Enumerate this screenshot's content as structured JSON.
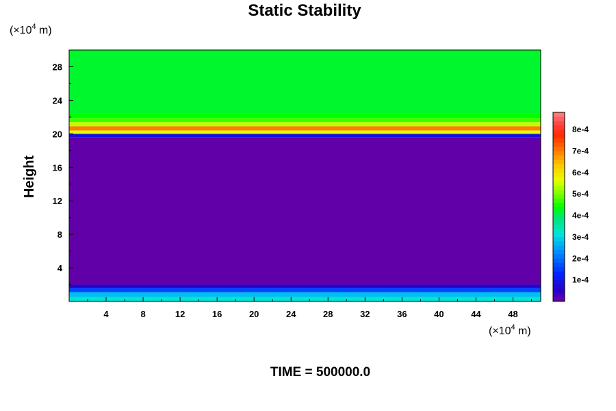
{
  "chart_data": {
    "type": "heatmap",
    "title": "Static Stability",
    "xlabel": "",
    "ylabel": "Height",
    "x_unit": "(×10",
    "x_unit_exp": "4",
    "x_unit_end": " m)",
    "y_unit": "(×10",
    "y_unit_exp": "4",
    "y_unit_end": " m)",
    "xlim": [
      0,
      51
    ],
    "ylim": [
      0,
      30
    ],
    "x_ticks": [
      4,
      8,
      12,
      16,
      20,
      24,
      28,
      32,
      36,
      40,
      44,
      48
    ],
    "y_ticks": [
      4,
      8,
      12,
      16,
      20,
      24,
      28
    ],
    "colorbar": {
      "min": 0,
      "max": 0.00088,
      "tick_values": [
        0.0001,
        0.0002,
        0.0003,
        0.0004,
        0.0005,
        0.0006,
        0.0007,
        0.0008
      ],
      "tick_labels": [
        "1e-4",
        "2e-4",
        "3e-4",
        "4e-4",
        "5e-4",
        "6e-4",
        "7e-4",
        "8e-4"
      ]
    },
    "layers": [
      {
        "y_from": 0,
        "y_to": 0.5,
        "value": 0.00032
      },
      {
        "y_from": 0.5,
        "y_to": 1.1,
        "value": 0.00028
      },
      {
        "y_from": 1.1,
        "y_to": 1.6,
        "value": 0.00016
      },
      {
        "y_from": 1.6,
        "y_to": 2.0,
        "value": 6e-05
      },
      {
        "y_from": 2.0,
        "y_to": 19.6,
        "value": 1e-05
      },
      {
        "y_from": 19.6,
        "y_to": 20.0,
        "value": 8e-05
      },
      {
        "y_from": 20.0,
        "y_to": 20.4,
        "value": 0.00056
      },
      {
        "y_from": 20.4,
        "y_to": 20.9,
        "value": 0.0007
      },
      {
        "y_from": 20.9,
        "y_to": 21.4,
        "value": 0.00054
      },
      {
        "y_from": 21.4,
        "y_to": 21.9,
        "value": 0.00047
      },
      {
        "y_from": 21.9,
        "y_to": 22.4,
        "value": 0.00044
      },
      {
        "y_from": 22.4,
        "y_to": 30,
        "value": 0.00042
      }
    ],
    "time_label": "TIME = 500000.0"
  }
}
